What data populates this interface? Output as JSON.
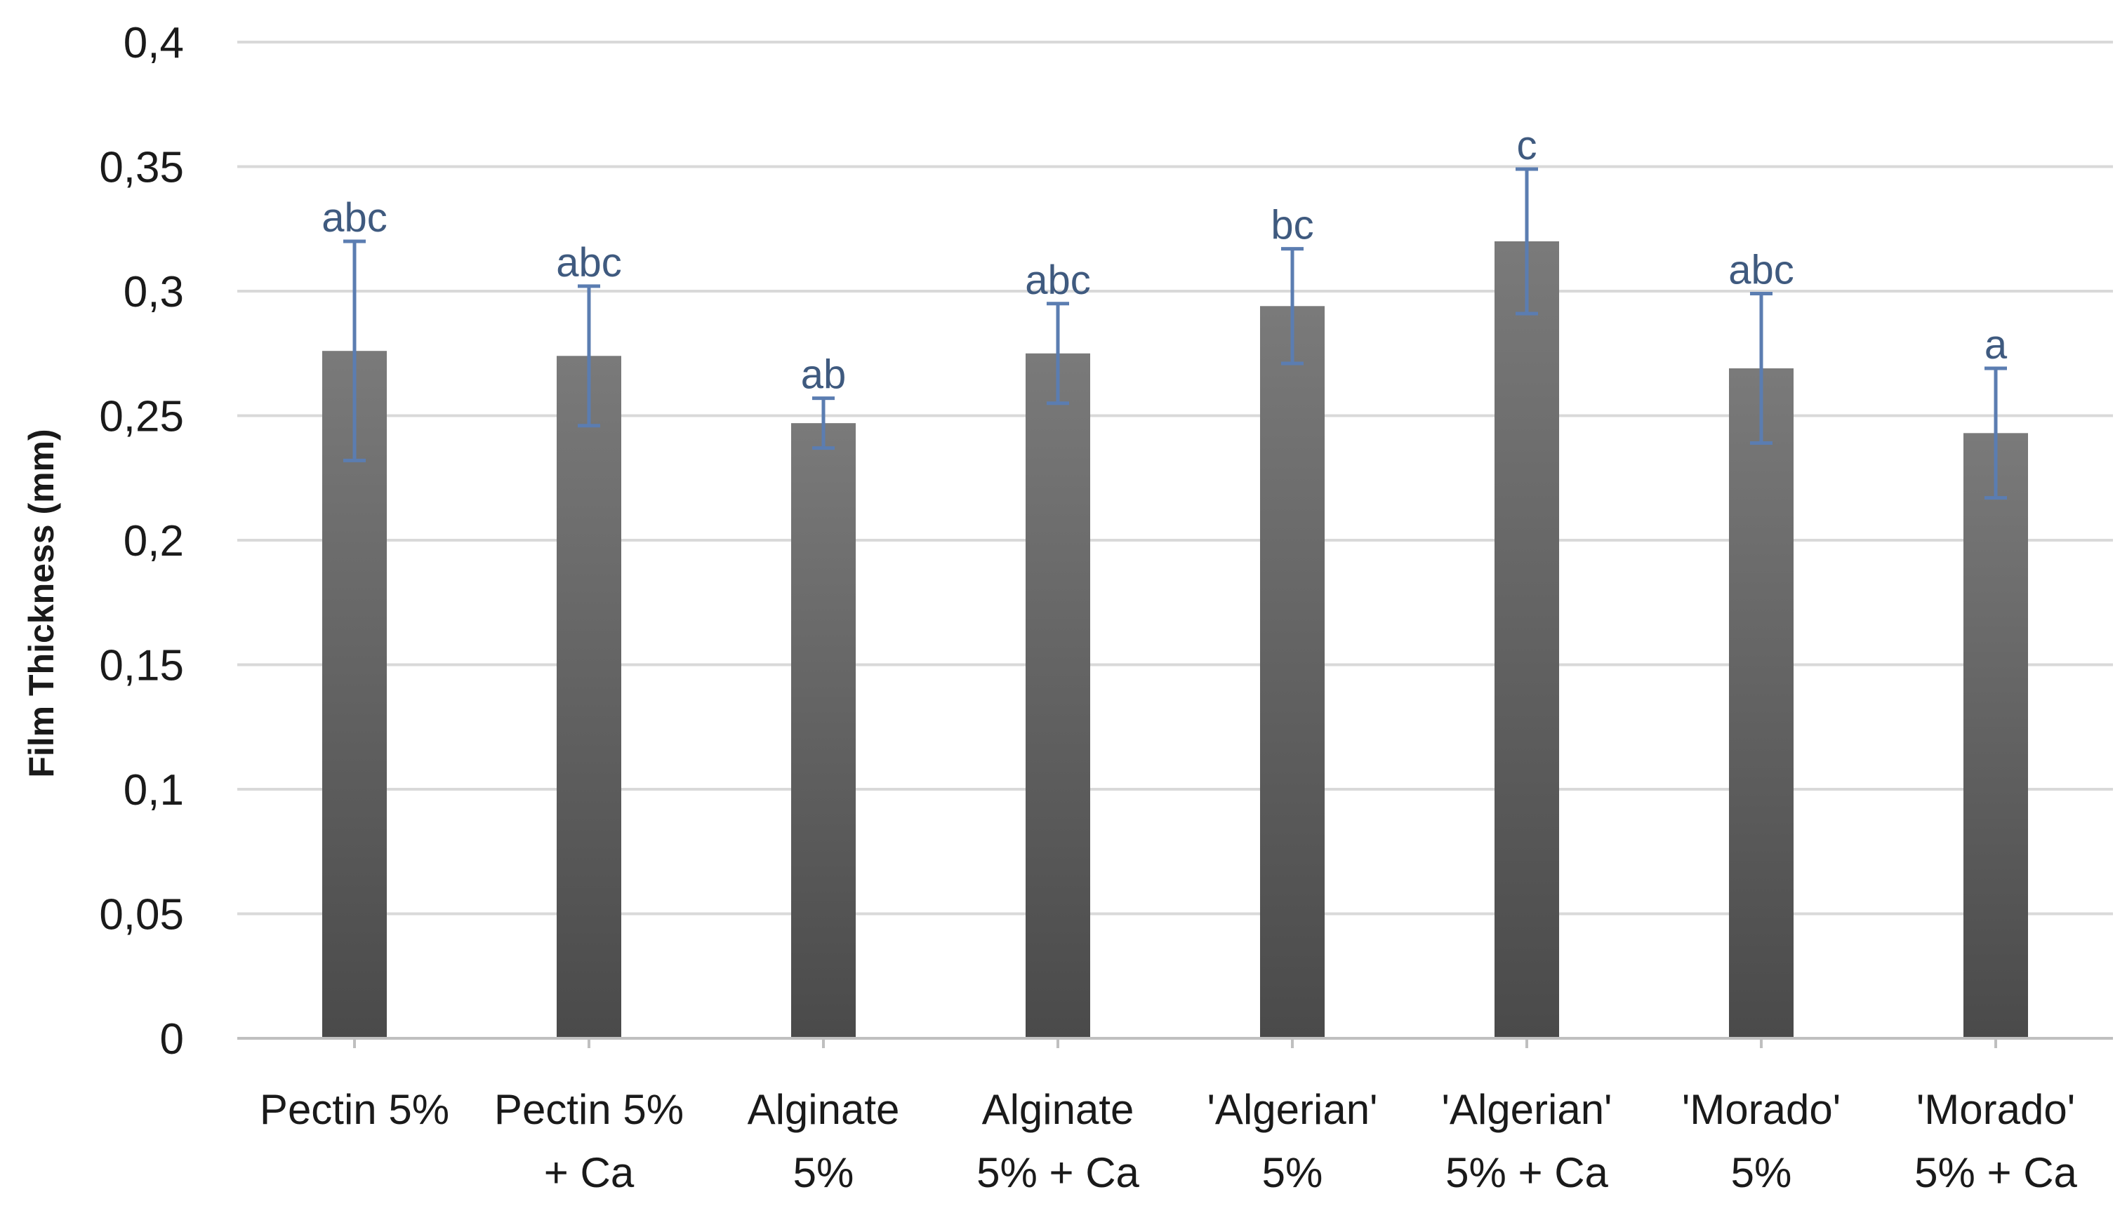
{
  "chart_data": {
    "type": "bar",
    "title": "",
    "xlabel": "",
    "ylabel": "Film Thickness (mm)",
    "ylim": [
      0,
      0.4
    ],
    "yticks": [
      0,
      0.05,
      0.1,
      0.15,
      0.2,
      0.25,
      0.3,
      0.35,
      0.4
    ],
    "ytick_labels": [
      "0",
      "0,05",
      "0,1",
      "0,15",
      "0,2",
      "0,25",
      "0,3",
      "0,35",
      "0,4"
    ],
    "grid": true,
    "legend": "none",
    "categories": [
      [
        "Pectin 5%"
      ],
      [
        "Pectin 5%",
        "+ Ca"
      ],
      [
        "Alginate",
        "5%"
      ],
      [
        "Alginate",
        "5% + Ca"
      ],
      [
        "'Algerian'",
        "5%"
      ],
      [
        "'Algerian'",
        "5% + Ca"
      ],
      [
        "'Morado'",
        "5%"
      ],
      [
        "'Morado'",
        "5% + Ca"
      ]
    ],
    "values": [
      0.276,
      0.274,
      0.247,
      0.275,
      0.294,
      0.32,
      0.269,
      0.243
    ],
    "errors": [
      0.044,
      0.028,
      0.01,
      0.02,
      0.023,
      0.029,
      0.03,
      0.026
    ],
    "significance_labels": [
      "abc",
      "abc",
      "ab",
      "abc",
      "bc",
      "c",
      "abc",
      "a"
    ],
    "colors": {
      "bar_top": "#7a7a7a",
      "bar_bottom": "#4a4a4a",
      "error_bar": "#5b7db1",
      "significance": "#3f5a7f",
      "grid": "#d9d9d9",
      "axis": "#bfbfbf",
      "text": "#1a1a1a"
    }
  }
}
